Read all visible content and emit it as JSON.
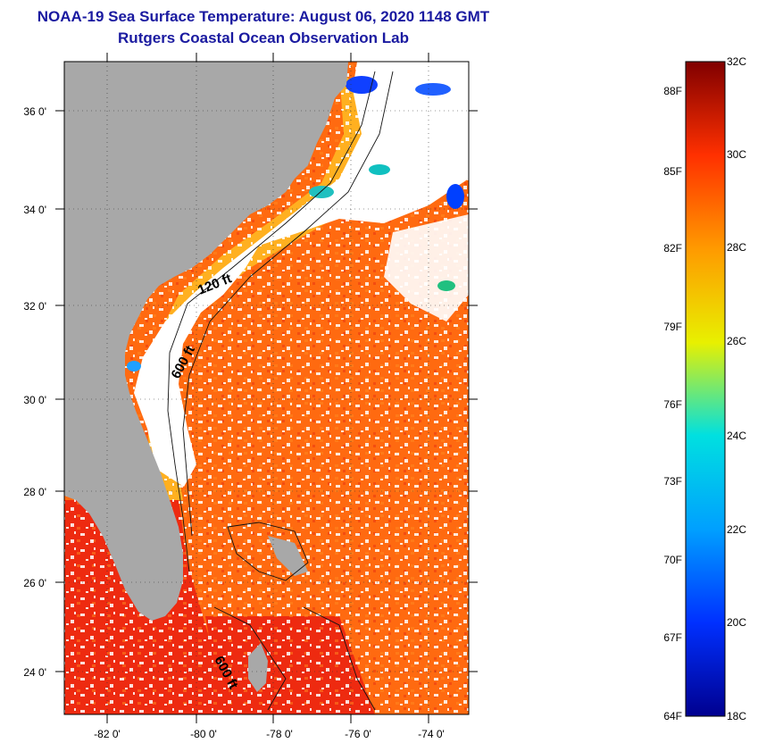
{
  "title": {
    "line1": "NOAA-19 Sea Surface Temperature:  August 06, 2020 1148 GMT",
    "line2": "Rutgers Coastal Ocean Observation Lab"
  },
  "axes": {
    "latitude_labels": [
      "36 0'",
      "34 0'",
      "32 0'",
      "30 0'",
      "28 0'",
      "26 0'",
      "24 0'"
    ],
    "longitude_labels": [
      "-82 0'",
      "-80 0'",
      "-78 0'",
      "-76 0'",
      "-74 0'"
    ]
  },
  "contours": {
    "label_120": "120 ft",
    "label_600_north": "600 ft",
    "label_600_south": "600 ft"
  },
  "colorbar": {
    "fahrenheit_labels": [
      "88F",
      "85F",
      "82F",
      "79F",
      "76F",
      "73F",
      "70F",
      "67F",
      "64F"
    ],
    "celsius_labels": [
      "32C",
      "30C",
      "28C",
      "26C",
      "24C",
      "22C",
      "20C",
      "18C"
    ],
    "colors": {
      "c18": "#00008f",
      "c20": "#0030ff",
      "c22": "#00a0ff",
      "c24": "#00e0e0",
      "c26": "#e8f000",
      "c28": "#ff9a00",
      "c30": "#ff3000",
      "c32": "#800000"
    }
  },
  "map_colors": {
    "land": "#a8a8a8",
    "cloud": "#ffffff",
    "warm_water": "#ff6a10",
    "hot_water": "#ee2a10",
    "coastal_water": "#ffb020"
  }
}
